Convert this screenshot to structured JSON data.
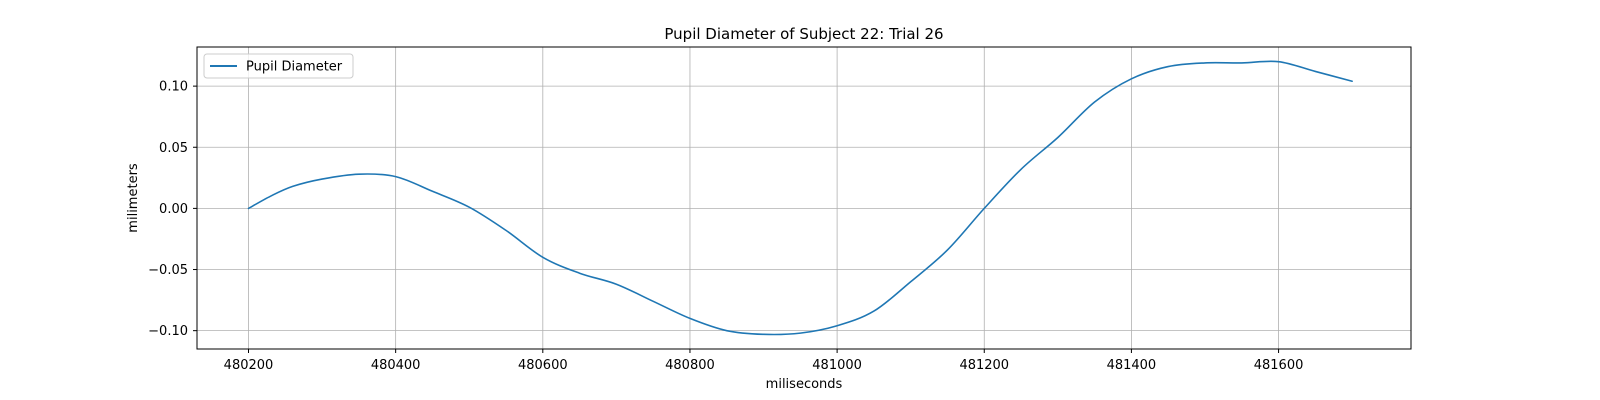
{
  "chart_data": {
    "type": "line",
    "title": "Pupil Diameter of Subject 22: Trial 26",
    "xlabel": "miliseconds",
    "ylabel": "milimeters",
    "xlim": [
      480130,
      481780
    ],
    "ylim": [
      -0.115,
      0.132
    ],
    "xticks": [
      480200,
      480400,
      480600,
      480800,
      481000,
      481200,
      481400,
      481600
    ],
    "yticks": [
      -0.1,
      -0.05,
      0.0,
      0.05,
      0.1
    ],
    "ytick_labels": [
      "−0.10",
      "−0.05",
      "0.00",
      "0.05",
      "0.10"
    ],
    "grid": true,
    "legend_position": "top-left",
    "series": [
      {
        "name": "Pupil Diameter",
        "color": "#1f77b4",
        "x": [
          480200,
          480230,
          480260,
          480300,
          480350,
          480400,
          480450,
          480500,
          480550,
          480600,
          480650,
          480700,
          480750,
          480800,
          480850,
          480900,
          480950,
          481000,
          481050,
          481100,
          481150,
          481200,
          481250,
          481300,
          481350,
          481400,
          481450,
          481500,
          481550,
          481600,
          481650,
          481700
        ],
        "y": [
          0.0,
          0.01,
          0.018,
          0.024,
          0.028,
          0.026,
          0.014,
          0.001,
          -0.018,
          -0.04,
          -0.053,
          -0.062,
          -0.076,
          -0.09,
          -0.1,
          -0.103,
          -0.102,
          -0.096,
          -0.084,
          -0.06,
          -0.034,
          0.0,
          0.032,
          0.058,
          0.087,
          0.106,
          0.116,
          0.119,
          0.119,
          0.12,
          0.112,
          0.104
        ]
      }
    ]
  }
}
